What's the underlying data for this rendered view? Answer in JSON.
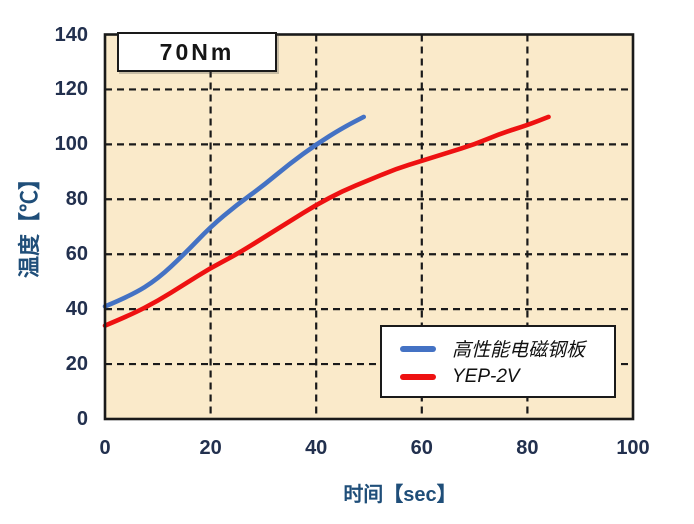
{
  "chart_data": {
    "type": "line",
    "title": "70Nm",
    "xlabel": "时间【sec】",
    "ylabel": "温度【℃】",
    "xlim": [
      0,
      100
    ],
    "ylim": [
      0,
      140
    ],
    "x_ticks": [
      0,
      20,
      40,
      60,
      80,
      100
    ],
    "y_ticks": [
      0,
      20,
      40,
      60,
      80,
      100,
      120,
      140
    ],
    "grid": "dashed-black-both-axes",
    "legend_position": "inside-bottom-right",
    "series": [
      {
        "name": "高性能电磁钢板",
        "color": "#4472C4",
        "style": "solid",
        "x": [
          0,
          5,
          10,
          15,
          20,
          25,
          30,
          35,
          40,
          45,
          49
        ],
        "y": [
          41,
          45,
          51,
          60,
          70,
          78,
          85,
          93,
          100,
          106,
          110
        ]
      },
      {
        "name": "YEP-2V",
        "color": "#EE1111",
        "style": "solid",
        "x": [
          0,
          5,
          10,
          15,
          20,
          25,
          30,
          35,
          40,
          45,
          50,
          55,
          60,
          65,
          70,
          75,
          80,
          84
        ],
        "y": [
          34,
          38,
          43,
          49,
          55,
          60,
          66,
          72,
          78,
          83,
          87,
          91,
          94,
          97,
          100,
          104,
          107,
          110
        ]
      }
    ],
    "colors": {
      "plot_background": "#FAEACA",
      "grid": "#1a1a1a",
      "frame": "#1a1a1a",
      "tick_labels": "#22304e",
      "axis_titles": "#1F4E79",
      "title_text": "#151515",
      "legend_text": "#111111",
      "page_background": "#ffffff"
    }
  }
}
